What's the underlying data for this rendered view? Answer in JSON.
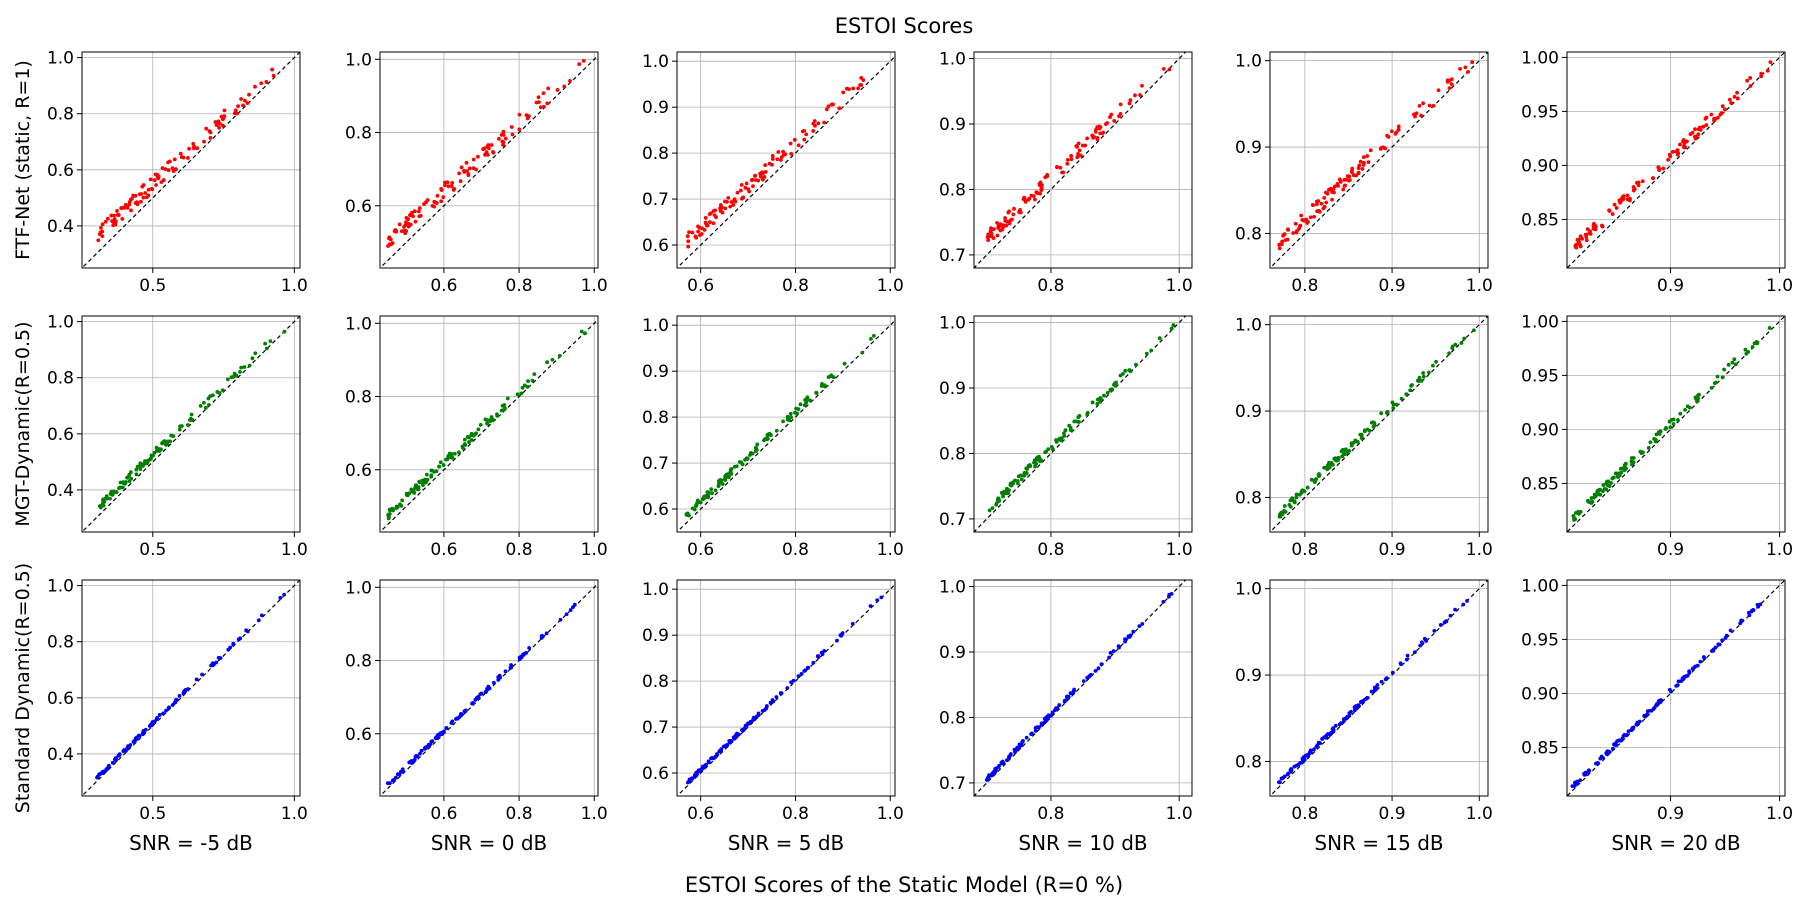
{
  "figure": {
    "title": "ESTOI Scores",
    "xlabel": "ESTOI Scores of the Static Model (R=0 %)"
  },
  "chart_data": {
    "type": "scatter",
    "title": "ESTOI Scores",
    "xlabel": "ESTOI Scores of the Static Model (R=0 %)",
    "grid": true,
    "reference_line": "y = x (dashed)",
    "rows": [
      {
        "ylabel": "FTF-Net (static, R=1)",
        "color": "#ff0000"
      },
      {
        "ylabel": "MGT-Dynamic(R=0.5)",
        "color": "#008000"
      },
      {
        "ylabel": "Standard Dynamic(R=0.5)",
        "color": "#0000ff"
      }
    ],
    "columns": [
      {
        "snr_label": "SNR = -5 dB",
        "xlim": [
          0.25,
          1.02
        ],
        "ylim": [
          0.25,
          1.02
        ],
        "xticks": [
          0.5,
          1.0
        ],
        "xtick_labels": [
          "0.5",
          "1.0"
        ],
        "yticks": [
          0.4,
          0.6,
          0.8,
          1.0
        ],
        "ytick_labels": [
          "0.4",
          "0.6",
          "0.8",
          "1.0"
        ],
        "x_range": [
          0.3,
          0.98
        ],
        "offsets": [
          0.05,
          0.025,
          0.01
        ]
      },
      {
        "snr_label": "SNR = 0 dB",
        "xlim": [
          0.43,
          1.01
        ],
        "ylim": [
          0.43,
          1.02
        ],
        "xticks": [
          0.6,
          0.8,
          1.0
        ],
        "xtick_labels": [
          "0.6",
          "0.8",
          "1.0"
        ],
        "yticks": [
          0.6,
          0.8,
          1.0
        ],
        "ytick_labels": [
          "0.6",
          "0.8",
          "1.0"
        ],
        "x_range": [
          0.45,
          0.99
        ],
        "offsets": [
          0.04,
          0.02,
          0.008
        ]
      },
      {
        "snr_label": "SNR = 5 dB",
        "xlim": [
          0.55,
          1.01
        ],
        "ylim": [
          0.55,
          1.02
        ],
        "xticks": [
          0.6,
          0.8,
          1.0
        ],
        "xtick_labels": [
          "0.6",
          "0.8",
          "1.0"
        ],
        "yticks": [
          0.6,
          0.7,
          0.8,
          0.9,
          1.0
        ],
        "ytick_labels": [
          "0.6",
          "0.7",
          "0.8",
          "0.9",
          "1.0"
        ],
        "x_range": [
          0.57,
          0.99
        ],
        "offsets": [
          0.03,
          0.015,
          0.006
        ]
      },
      {
        "snr_label": "SNR = 10 dB",
        "xlim": [
          0.68,
          1.02
        ],
        "ylim": [
          0.68,
          1.01
        ],
        "xticks": [
          0.8,
          1.0
        ],
        "xtick_labels": [
          "0.8",
          "1.0"
        ],
        "yticks": [
          0.7,
          0.8,
          0.9,
          1.0
        ],
        "ytick_labels": [
          "0.7",
          "0.8",
          "0.9",
          "1.0"
        ],
        "x_range": [
          0.7,
          0.995
        ],
        "offsets": [
          0.02,
          0.01,
          0.005
        ]
      },
      {
        "snr_label": "SNR = 15 dB",
        "xlim": [
          0.76,
          1.01
        ],
        "ylim": [
          0.76,
          1.01
        ],
        "xticks": [
          0.8,
          0.9,
          1.0
        ],
        "xtick_labels": [
          "0.8",
          "0.9",
          "1.0"
        ],
        "yticks": [
          0.8,
          0.9,
          1.0
        ],
        "ytick_labels": [
          "0.8",
          "0.9",
          "1.0"
        ],
        "x_range": [
          0.77,
          0.995
        ],
        "offsets": [
          0.015,
          0.008,
          0.004
        ]
      },
      {
        "snr_label": "SNR = 20 dB",
        "xlim": [
          0.805,
          1.005
        ],
        "ylim": [
          0.805,
          1.005
        ],
        "xticks": [
          0.9,
          1.0
        ],
        "xtick_labels": [
          "0.9",
          "1.0"
        ],
        "yticks": [
          0.85,
          0.9,
          0.95,
          1.0
        ],
        "ytick_labels": [
          "0.85",
          "0.90",
          "0.95",
          "1.00"
        ],
        "x_range": [
          0.81,
          0.998
        ],
        "offsets": [
          0.01,
          0.006,
          0.003
        ]
      }
    ]
  }
}
